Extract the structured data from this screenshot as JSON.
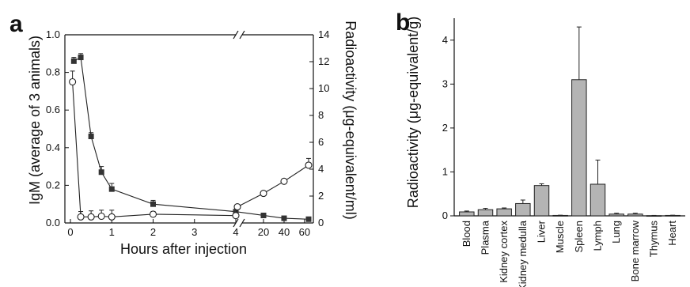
{
  "panel_labels": {
    "a": "a",
    "b": "b"
  },
  "chart_data": [
    {
      "panel": "a",
      "type": "line",
      "xlabel": "Hours after injection",
      "ylabel_left": "IgM (average of 3 animals)",
      "ylabel_right": "Radioactivity (μg-equivalent/ml)",
      "ylim_left": [
        0,
        1.0
      ],
      "ylim_right": [
        0,
        14
      ],
      "axis_break": "between 4 and 20",
      "xticks": [
        "0",
        "1",
        "2",
        "3",
        "4",
        "20",
        "40",
        "60"
      ],
      "yticks_left": [
        "0.0",
        "0.2",
        "0.4",
        "0.6",
        "0.8",
        "1.0"
      ],
      "yticks_right": [
        "0",
        "2",
        "4",
        "6",
        "8",
        "10",
        "12",
        "14"
      ],
      "series": [
        {
          "marker": "filled-square",
          "axis": "left",
          "x": [
            0.083,
            0.25,
            0.5,
            0.75,
            1,
            2,
            4,
            20,
            40,
            64
          ],
          "y": [
            0.86,
            0.88,
            0.46,
            0.27,
            0.18,
            0.1,
            0.06,
            0.04,
            0.025,
            0.02
          ],
          "err": [
            0.02,
            0.02,
            0.02,
            0.03,
            0.03,
            0.02,
            0.01,
            0.005,
            0.005,
            0.005
          ]
        },
        {
          "marker": "open-circle",
          "axis": "right",
          "x": [
            0.05,
            0.25,
            0.5,
            0.75,
            1,
            2,
            4,
            10,
            20,
            40,
            64
          ],
          "y": [
            10.5,
            0.45,
            0.45,
            0.5,
            0.45,
            0.65,
            0.55,
            1.2,
            2.2,
            3.1,
            4.3
          ],
          "err": [
            0.8,
            0.4,
            0.45,
            0.45,
            0.5,
            0.2,
            0.1,
            0.1,
            0.1,
            0.1,
            0.5
          ]
        }
      ]
    },
    {
      "panel": "b",
      "type": "bar",
      "ylabel": "Radioactivity (μg-equivalent/g)",
      "ylim": [
        0,
        4.5
      ],
      "yticks": [
        "0",
        "1",
        "2",
        "3",
        "4"
      ],
      "categories": [
        "Blood",
        "Plasma",
        "Kidney cortex",
        "Kidney medulla",
        "Liver",
        "Muscle",
        "Spleen",
        "Lymph",
        "Lung",
        "Bone marrow",
        "Thymus",
        "Heart"
      ],
      "values": [
        0.09,
        0.14,
        0.16,
        0.28,
        0.69,
        0.01,
        3.1,
        0.72,
        0.04,
        0.04,
        0.005,
        0.01
      ],
      "errors": [
        0.02,
        0.03,
        0.02,
        0.08,
        0.04,
        0.005,
        1.2,
        0.55,
        0.02,
        0.02,
        0.005,
        0.005
      ]
    }
  ]
}
